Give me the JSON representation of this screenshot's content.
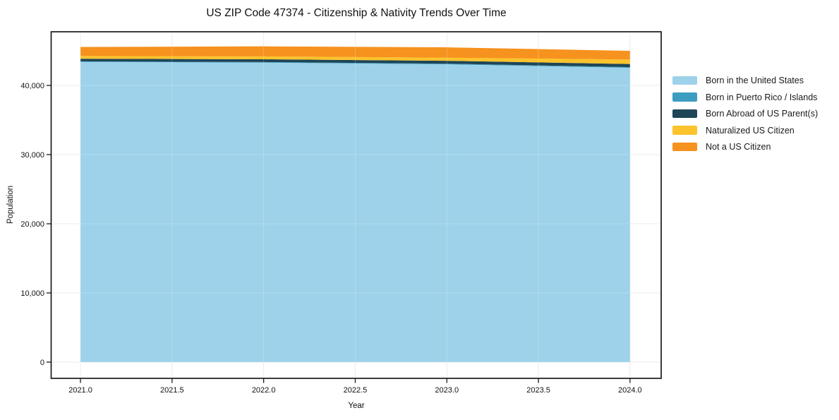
{
  "chart_data": {
    "type": "area",
    "stacked": true,
    "title": "US ZIP Code 47374 - Citizenship & Nativity Trends Over Time",
    "xlabel": "Year",
    "ylabel": "Population",
    "x": [
      2021,
      2022,
      2023,
      2024
    ],
    "series": [
      {
        "name": "Born in the United States",
        "color": "#9DD2EA",
        "values": [
          43400,
          43300,
          43050,
          42550
        ]
      },
      {
        "name": "Born in Puerto Rico / Islands",
        "color": "#3D9DC0",
        "values": [
          80,
          80,
          90,
          100
        ]
      },
      {
        "name": "Born Abroad of US Parent(s)",
        "color": "#1F4557",
        "values": [
          380,
          400,
          420,
          450
        ]
      },
      {
        "name": "Naturalized US Citizen",
        "color": "#FCC32C",
        "values": [
          400,
          420,
          450,
          650
        ]
      },
      {
        "name": "Not a US Citizen",
        "color": "#F6921E",
        "values": [
          1300,
          1450,
          1500,
          1250
        ]
      }
    ],
    "xlim": [
      2020.84,
      2024.17
    ],
    "ylim": [
      -2350,
      47760
    ],
    "x_tick_values": [
      2021,
      2021.5,
      2022,
      2022.5,
      2023,
      2023.5,
      2024
    ],
    "x_tick_labels": [
      "2021.0",
      "2021.5",
      "2022.0",
      "2022.5",
      "2023.0",
      "2023.5",
      "2024.0"
    ],
    "y_tick_values": [
      0,
      10000,
      20000,
      30000,
      40000
    ],
    "y_tick_labels": [
      "0",
      "10,000",
      "20,000",
      "30,000",
      "40,000"
    ],
    "grid": true,
    "grid_color": "#e7e7e7",
    "frame_color": "#1a1a1a",
    "legend_position": "right-outside"
  }
}
